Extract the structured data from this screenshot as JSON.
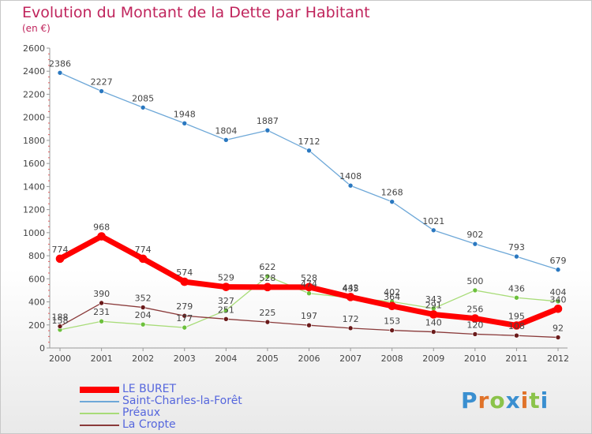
{
  "title": "Evolution du Montant de la Dette par Habitant",
  "unit_label": "(en €)",
  "logo": {
    "text": "Proxiti",
    "letters": [
      {
        "ch": "P",
        "color": "#3a8fd0"
      },
      {
        "ch": "r",
        "color": "#e0732a"
      },
      {
        "ch": "o",
        "color": "#8bc34a"
      },
      {
        "ch": "x",
        "color": "#3a8fd0"
      },
      {
        "ch": "i",
        "color": "#e0732a"
      },
      {
        "ch": "t",
        "color": "#8bc34a"
      },
      {
        "ch": "i",
        "color": "#3a8fd0"
      }
    ]
  },
  "chart_data": {
    "type": "line",
    "title": "Evolution du Montant de la Dette par Habitant",
    "ylabel": "(en €)",
    "xlabel": "",
    "x": [
      "2000",
      "2001",
      "2002",
      "2003",
      "2004",
      "2005",
      "2006",
      "2007",
      "2008",
      "2009",
      "2010",
      "2011",
      "2012"
    ],
    "ylim": [
      0,
      2600
    ],
    "yticks": [
      0,
      200,
      400,
      600,
      800,
      1000,
      1200,
      1400,
      1600,
      1800,
      2000,
      2200,
      2400,
      2600
    ],
    "grid": false,
    "legend": "bottom-left",
    "series": [
      {
        "name": "LE BURET",
        "color": "#ff0000",
        "marker": "#ff0000",
        "values": [
          774,
          968,
          774,
          574,
          529,
          528,
          528,
          442,
          364,
          291,
          256,
          195,
          340
        ]
      },
      {
        "name": "Saint-Charles-la-Forêt",
        "color": "#6ea8d8",
        "marker": "#2a78c0",
        "values": [
          2386,
          2227,
          2085,
          1948,
          1804,
          1887,
          1712,
          1408,
          1268,
          1021,
          902,
          793,
          679
        ]
      },
      {
        "name": "Préaux",
        "color": "#a8dc78",
        "marker": "#6cc03c",
        "values": [
          158,
          231,
          204,
          177,
          327,
          622,
          474,
          435,
          402,
          343,
          500,
          436,
          404
        ]
      },
      {
        "name": "La Cropte",
        "color": "#8a3a3a",
        "marker": "#6a1a1a",
        "values": [
          188,
          390,
          352,
          279,
          251,
          225,
          197,
          172,
          153,
          140,
          120,
          108,
          92
        ]
      }
    ]
  }
}
